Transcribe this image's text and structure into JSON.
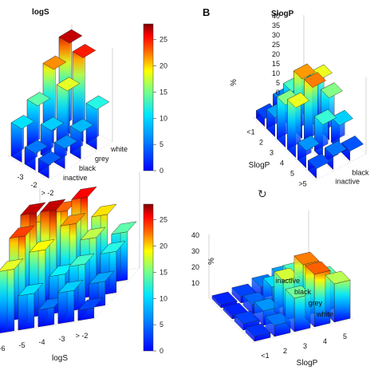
{
  "colors": {
    "bar_low": "#1a1aff",
    "bar_mid": "#37e2f5",
    "bar_yellow": "#f5f500",
    "bar_high": "#ff1a00",
    "bar_top": "#8b0000"
  },
  "colorbar_ticks": [
    "0",
    "5",
    "10",
    "15",
    "20",
    "25"
  ],
  "panel_letter": "B",
  "chart_data": [
    {
      "type": "bar3d",
      "title": "logS",
      "xlabel": "",
      "x_tick_labels": [
        "-3",
        "-2",
        "> -2"
      ],
      "y_tick_labels": [
        "inactive",
        "black",
        "grey",
        "white"
      ],
      "zlim": [
        0,
        28
      ],
      "values": [
        {
          "category": "inactive",
          "bars": [
            10,
            5,
            4
          ]
        },
        {
          "category": "black",
          "bars": [
            14,
            9,
            6
          ]
        },
        {
          "category": "grey",
          "bars": [
            22,
            18,
            8
          ]
        },
        {
          "category": "white",
          "bars": [
            27,
            25,
            12
          ]
        }
      ]
    },
    {
      "type": "bar3d",
      "title": "SlogP",
      "xlabel": "SlogP",
      "zlabel": "%",
      "x_tick_labels": [
        "<1",
        "2",
        "3",
        "4",
        "5",
        ">5"
      ],
      "y_tick_labels": [
        "inactive",
        "black"
      ],
      "z_tick_labels": [
        "0",
        "5",
        "10",
        "15",
        "20",
        "25",
        "30",
        "35",
        "40"
      ],
      "zlim": [
        0,
        40
      ],
      "values": [
        {
          "category": "inactive",
          "bars": [
            4,
            10,
            22,
            26,
            9,
            5
          ]
        },
        {
          "category": "black",
          "bars": [
            8,
            19,
            31,
            32,
            18,
            7
          ]
        },
        {
          "category": "grey",
          "bars": [
            6,
            16,
            26,
            22,
            13,
            5
          ]
        }
      ]
    },
    {
      "type": "bar3d",
      "title": "",
      "xlabel": "logS",
      "x_tick_labels": [
        "-6",
        "-5",
        "-4",
        "-3",
        "> -2"
      ],
      "zlim": [
        0,
        28
      ],
      "values": [
        {
          "category": "inactive",
          "bars": [
            18,
            10,
            5,
            9,
            3
          ]
        },
        {
          "category": "black",
          "bars": [
            24,
            19,
            11,
            13,
            7
          ]
        },
        {
          "category": "grey",
          "bars": [
            27,
            27,
            22,
            17,
            12
          ]
        },
        {
          "category": "white",
          "bars": [
            21,
            23,
            26,
            20,
            14
          ]
        }
      ]
    },
    {
      "type": "bar3d",
      "title": "",
      "xlabel": "SlogP",
      "zlabel": "%",
      "x_tick_labels": [
        "<1",
        "2",
        "3",
        "4",
        "5"
      ],
      "y_tick_labels": [
        "white",
        "grey",
        "black",
        "inactive"
      ],
      "z_tick_labels": [
        "10",
        "20",
        "30",
        "40"
      ],
      "zlim": [
        0,
        40
      ],
      "values": [
        {
          "category": "white",
          "bars": [
            3,
            7,
            21,
            33,
            24
          ]
        },
        {
          "category": "grey",
          "bars": [
            4,
            9,
            25,
            32,
            20
          ]
        },
        {
          "category": "black",
          "bars": [
            2,
            6,
            14,
            19,
            13
          ]
        },
        {
          "category": "inactive",
          "bars": [
            2,
            4,
            7,
            10,
            6
          ]
        }
      ]
    }
  ],
  "arrow_glyph": "↻"
}
